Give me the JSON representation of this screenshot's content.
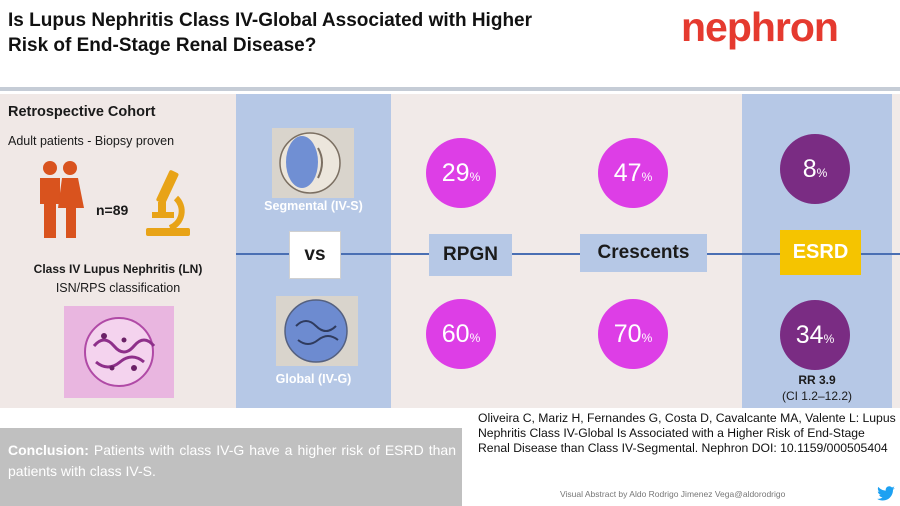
{
  "header": {
    "title_line1": "Is Lupus Nephritis Class IV-Global Associated with Higher",
    "title_line2": "Risk of End-Stage Renal Disease?",
    "logo": "nephron",
    "logo_color": "#e53a2f"
  },
  "cohort": {
    "title": "Retrospective Cohort",
    "subtitle": "Adult patients - Biopsy proven",
    "n_label": "n=89",
    "class_title": "Class IV Lupus Nephritis (LN)",
    "class_sub": "ISN/RPS classification"
  },
  "groups": {
    "segmental_label": "Segmental (IV-S)",
    "global_label": "Global (IV-G)",
    "vs": "vs"
  },
  "outcomes": {
    "rpgn": {
      "label": "RPGN",
      "segmental": "29",
      "global": "60"
    },
    "crescents": {
      "label": "Crescents",
      "segmental": "47",
      "global": "70"
    },
    "esrd": {
      "label": "ESRD",
      "segmental": "8",
      "global": "34"
    },
    "pct_symbol": "%",
    "rr": "RR 3.9",
    "ci": "(CI 1.2–12.2)"
  },
  "colors": {
    "bubble": "#dd3ee6",
    "bubble_dark": "#7a2c83",
    "blue_panel": "#b6c8e6",
    "esrd_box": "#f5c400"
  },
  "conclusion": {
    "label": "Conclusion:",
    "text": " Patients with class IV-G have a higher risk of ESRD than patients with class IV-S."
  },
  "citation": "Oliveira C, Mariz H, Fernandes G, Costa D, Cavalcante MA, Valente L: Lupus Nephritis Class IV-Global Is Associated with a Higher Risk of End-Stage Renal Disease than Class IV-Segmental. Nephron DOI: 10.1159/000505404",
  "footer": "Visual Abstract by Aldo Rodrigo Jimenez Vega@aldorodrigo"
}
